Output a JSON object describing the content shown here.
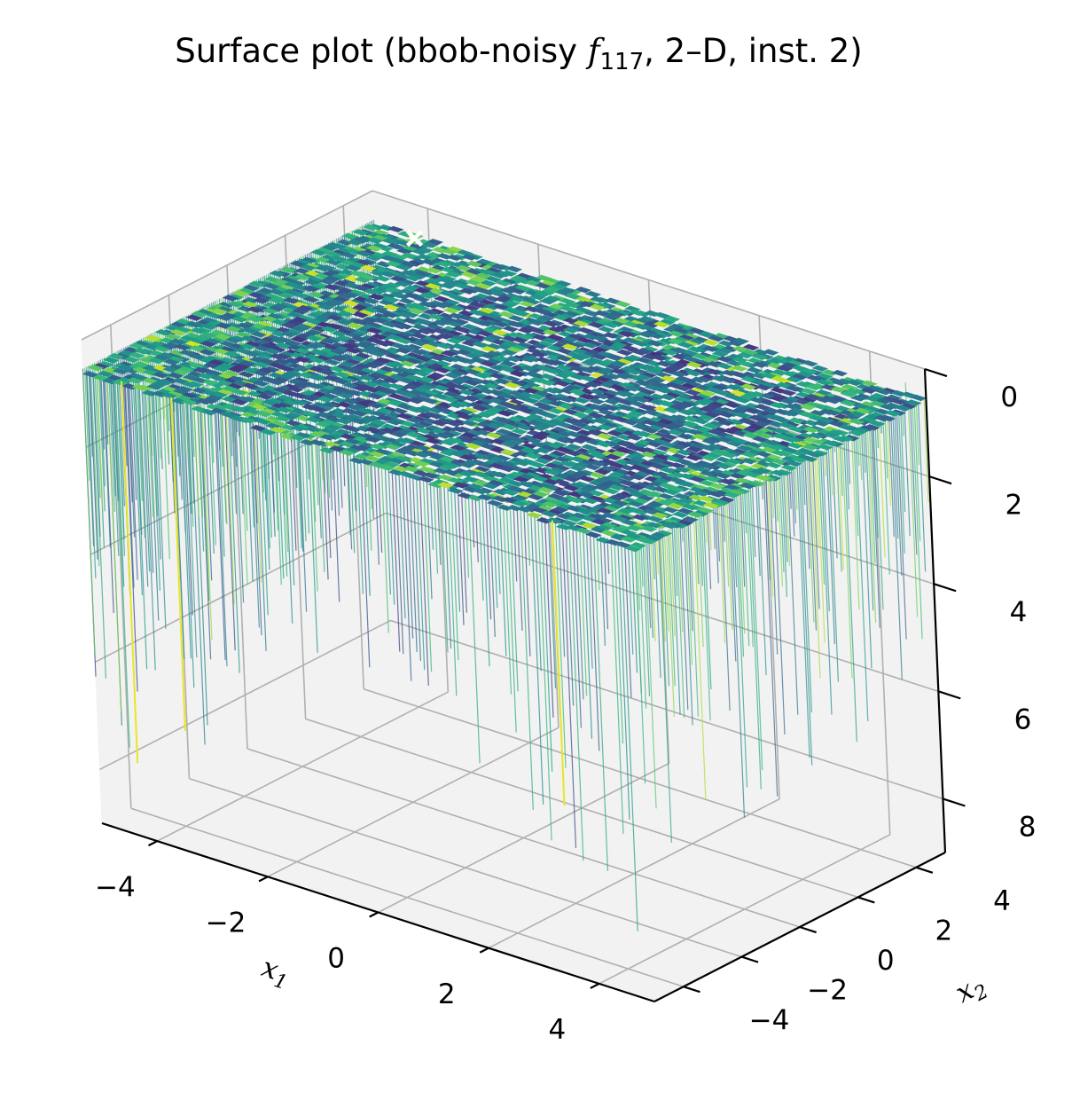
{
  "chart_data": {
    "type": "surface",
    "title": "Surface plot (bbob-noisy f117, 2–D, inst. 2)",
    "title_parts": {
      "prefix": "Surface plot (bbob-noisy ",
      "func": "f",
      "func_sub": "117",
      "suffix": ", 2–D, inst. 2)"
    },
    "xlabel": "x1",
    "ylabel": "x2",
    "zlabel": "",
    "x_axis": {
      "range": [
        -5,
        5
      ],
      "ticks": [
        -4,
        -2,
        0,
        2,
        4
      ],
      "tick_labels": [
        "−4",
        "−2",
        "0",
        "2",
        "4"
      ],
      "label_base": "x",
      "label_sub": "1"
    },
    "y_axis": {
      "range": [
        -5,
        5
      ],
      "ticks": [
        -4,
        -2,
        0,
        2,
        4
      ],
      "tick_labels": [
        "−4",
        "−2",
        "0",
        "2",
        "4"
      ],
      "label_base": "x",
      "label_sub": "2"
    },
    "z_axis": {
      "range": [
        0,
        9
      ],
      "inverted": true,
      "ticks": [
        0,
        2,
        4,
        6,
        8
      ],
      "tick_labels": [
        "0",
        "2",
        "4",
        "6",
        "8"
      ]
    },
    "colormap": "viridis",
    "grid": true,
    "optimum_marker": {
      "x": -3.5,
      "y": 3.6,
      "z": 0,
      "symbol": "x",
      "color": "#ffffff"
    }
  }
}
